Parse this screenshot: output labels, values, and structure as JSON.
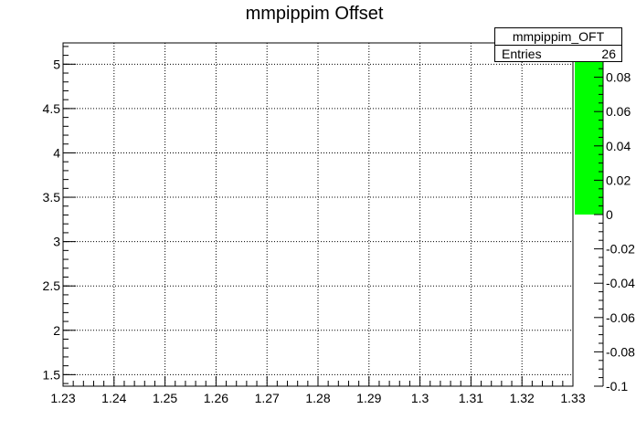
{
  "chart_data": {
    "type": "heatmap",
    "title": "mmpippim Offset",
    "xlabel": "",
    "ylabel": "",
    "xlim": [
      1.23,
      1.33
    ],
    "ylim": [
      1.37,
      5.24
    ],
    "x_ticks": [
      "1.23",
      "1.24",
      "1.25",
      "1.26",
      "1.27",
      "1.28",
      "1.29",
      "1.3",
      "1.31",
      "1.32",
      "1.33"
    ],
    "x_tick_values": [
      1.23,
      1.24,
      1.25,
      1.26,
      1.27,
      1.28,
      1.29,
      1.3,
      1.31,
      1.32,
      1.33
    ],
    "y_ticks": [
      "1.5",
      "2",
      "2.5",
      "3",
      "3.5",
      "4",
      "4.5",
      "5"
    ],
    "y_tick_values": [
      1.5,
      2,
      2.5,
      3,
      3.5,
      4,
      4.5,
      5
    ],
    "grid": true,
    "colorbar": {
      "range": [
        -0.1,
        0.1
      ],
      "ticks": [
        "-0.1",
        "-0.08",
        "-0.06",
        "-0.04",
        "-0.02",
        "0",
        "0.02",
        "0.04",
        "0.06",
        "0.08"
      ],
      "tick_values": [
        -0.1,
        -0.08,
        -0.06,
        -0.04,
        -0.02,
        0,
        0.02,
        0.04,
        0.06,
        0.08
      ],
      "filled_range": [
        0,
        0.1
      ],
      "fill_color": "#00ff00"
    },
    "stats_box": {
      "name": "mmpippim_OFT",
      "entries_label": "Entries",
      "entries_value": "26"
    }
  }
}
